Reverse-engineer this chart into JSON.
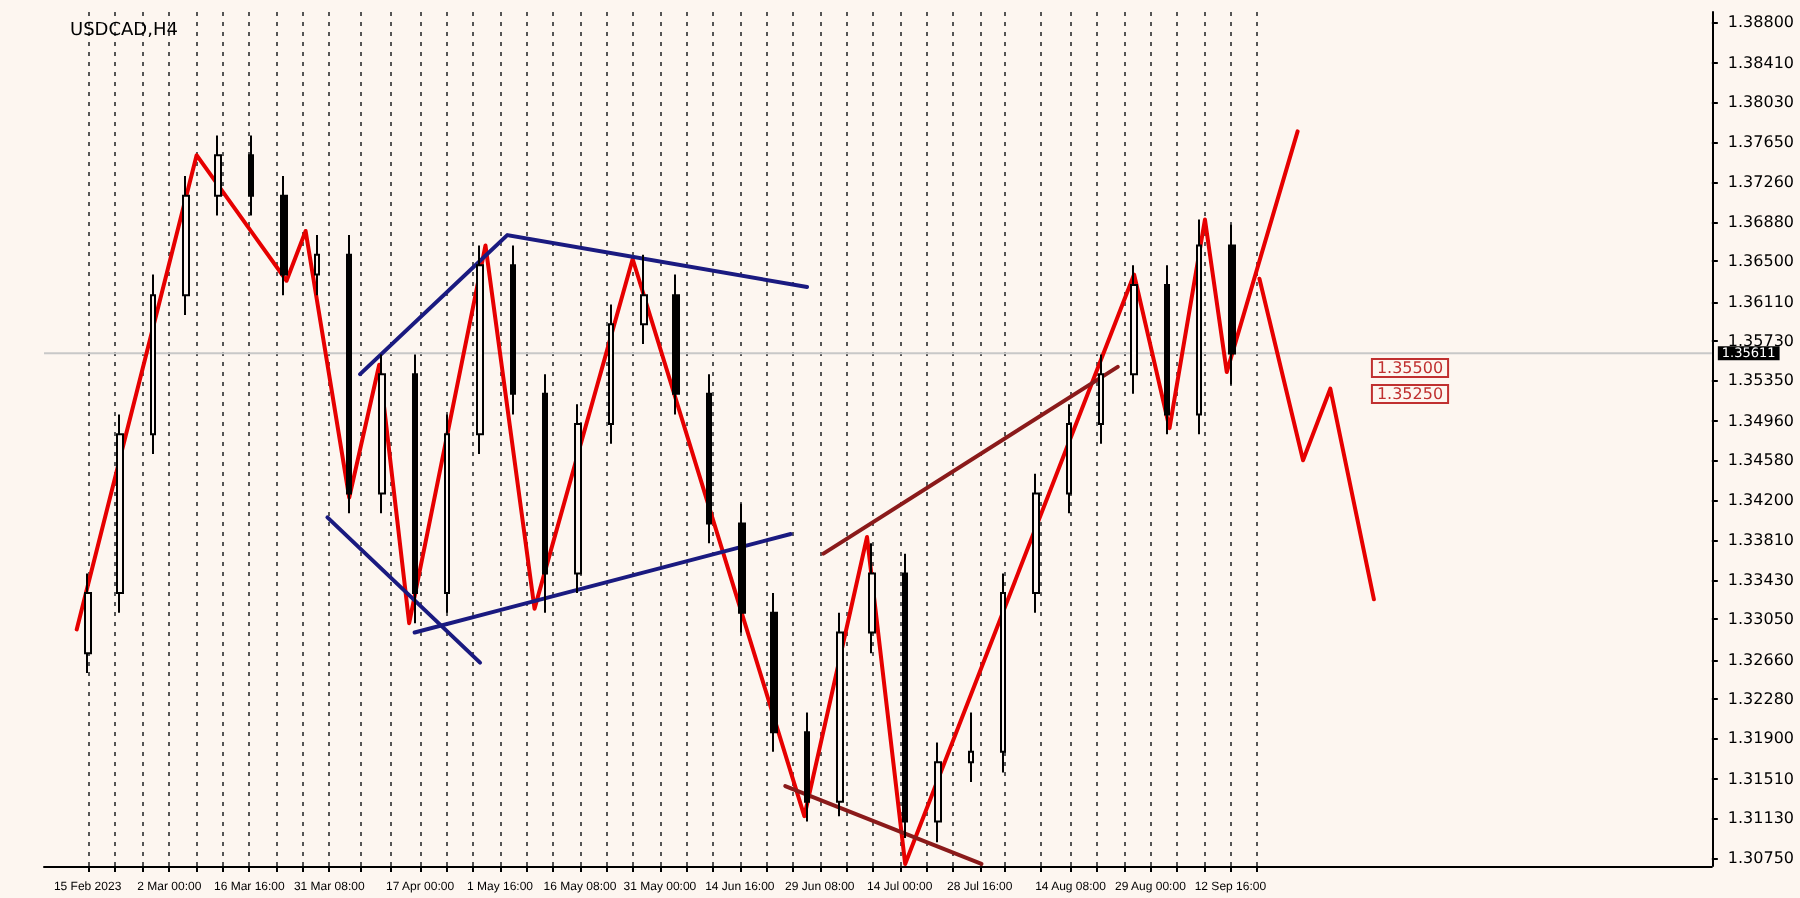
{
  "chart_data": {
    "type": "candlestick",
    "title": "USDCAD,H4",
    "color": "#000000",
    "x": [
      "2023-02-15",
      "2023-02-21",
      "2023-02-27",
      "2023-03-05",
      "2023-03-11",
      "2023-03-17",
      "2023-03-23",
      "2023-03-29",
      "2023-04-04",
      "2023-04-10",
      "2023-04-16",
      "2023-04-22",
      "2023-04-28",
      "2023-05-04",
      "2023-05-10",
      "2023-05-16",
      "2023-05-22",
      "2023-05-28",
      "2023-06-03",
      "2023-06-09",
      "2023-06-15",
      "2023-06-21",
      "2023-06-27",
      "2023-07-03",
      "2023-07-09",
      "2023-07-15",
      "2023-07-21",
      "2023-07-27",
      "2023-08-02",
      "2023-08-08",
      "2023-08-14",
      "2023-08-20",
      "2023-08-26",
      "2023-09-01",
      "2023-09-07",
      "2023-09-13"
    ],
    "ohlc": [
      [
        1.3272,
        1.3349,
        1.3253,
        1.333
      ],
      [
        1.333,
        1.3502,
        1.3311,
        1.3483
      ],
      [
        1.3483,
        1.3637,
        1.3464,
        1.3617
      ],
      [
        1.3617,
        1.3732,
        1.3598,
        1.3713
      ],
      [
        1.3713,
        1.3771,
        1.3694,
        1.3752
      ],
      [
        1.3752,
        1.3771,
        1.3694,
        1.3713
      ],
      [
        1.3713,
        1.3732,
        1.3617,
        1.3637
      ],
      [
        1.3637,
        1.3675,
        1.3617,
        1.3656
      ],
      [
        1.3656,
        1.3675,
        1.3407,
        1.3426
      ],
      [
        1.3426,
        1.356,
        1.3407,
        1.3541
      ],
      [
        1.3541,
        1.356,
        1.3301,
        1.333
      ],
      [
        1.333,
        1.3502,
        1.3311,
        1.3483
      ],
      [
        1.3483,
        1.3665,
        1.3464,
        1.3646
      ],
      [
        1.3646,
        1.3665,
        1.3502,
        1.3522
      ],
      [
        1.3522,
        1.3541,
        1.3311,
        1.3349
      ],
      [
        1.3349,
        1.3512,
        1.333,
        1.3493
      ],
      [
        1.3493,
        1.3608,
        1.3474,
        1.3589
      ],
      [
        1.3589,
        1.3656,
        1.357,
        1.3617
      ],
      [
        1.3617,
        1.3637,
        1.3502,
        1.3522
      ],
      [
        1.3522,
        1.3541,
        1.3378,
        1.3397
      ],
      [
        1.3397,
        1.3416,
        1.3292,
        1.3311
      ],
      [
        1.3311,
        1.333,
        1.3177,
        1.3196
      ],
      [
        1.3196,
        1.3215,
        1.311,
        1.3129
      ],
      [
        1.3129,
        1.3311,
        1.3115,
        1.3292
      ],
      [
        1.3292,
        1.3378,
        1.3272,
        1.3349
      ],
      [
        1.3349,
        1.3368,
        1.3094,
        1.311
      ],
      [
        1.311,
        1.3186,
        1.309,
        1.3167
      ],
      [
        1.3167,
        1.3215,
        1.3148,
        1.3177
      ],
      [
        1.3177,
        1.3349,
        1.3157,
        1.333
      ],
      [
        1.333,
        1.3445,
        1.3311,
        1.3426
      ],
      [
        1.3426,
        1.3512,
        1.3407,
        1.3493
      ],
      [
        1.3493,
        1.356,
        1.3474,
        1.3541
      ],
      [
        1.3541,
        1.3646,
        1.3522,
        1.3627
      ],
      [
        1.3627,
        1.3646,
        1.3483,
        1.3502
      ],
      [
        1.3502,
        1.369,
        1.3483,
        1.3665
      ],
      [
        1.3665,
        1.3685,
        1.3531,
        1.3561
      ]
    ],
    "series": [
      {
        "type": "line",
        "color": "#e60000",
        "x": [
          "2023-02-13",
          "2023-03-07",
          "2023-03-23T12:00",
          "2023-03-27",
          "2023-04-04",
          "2023-04-09T12:00",
          "2023-04-15",
          "2023-04-29",
          "2023-05-08",
          "2023-05-26",
          "2023-06-26T12:00",
          "2023-07-08",
          "2023-07-15",
          "2023-08-26",
          "2023-09-01T12:00",
          "2023-09-08",
          "2023-09-12",
          "2023-09-25"
        ],
        "values": [
          1.3295,
          1.3752,
          1.3631,
          1.3679,
          1.3422,
          1.355,
          1.3301,
          1.3665,
          1.3315,
          1.3652,
          1.3115,
          1.3384,
          1.3069,
          1.3637,
          1.3489,
          1.369,
          1.3543,
          1.3775
        ]
      },
      {
        "type": "line",
        "color": "#e60000",
        "x": [
          "2023-09-18",
          "2023-09-26",
          "2023-10-01",
          "2023-10-09"
        ],
        "values": [
          1.3633,
          1.3458,
          1.3527,
          1.3324
        ]
      },
      {
        "type": "line",
        "color": "#1a1a80",
        "x": [
          "2023-04-06",
          "2023-05-03",
          "2023-06-27"
        ],
        "values": [
          1.3541,
          1.3675,
          1.3625
        ]
      },
      {
        "type": "line",
        "color": "#1a1a80",
        "x": [
          "2023-03-31",
          "2023-04-28"
        ],
        "values": [
          1.3403,
          1.3263
        ]
      },
      {
        "type": "line",
        "color": "#1a1a80",
        "x": [
          "2023-04-16",
          "2023-06-24"
        ],
        "values": [
          1.3292,
          1.3387
        ]
      },
      {
        "type": "line",
        "color": "#8b1a1a",
        "x": [
          "2023-06-30",
          "2023-08-23"
        ],
        "values": [
          1.3368,
          1.3548
        ]
      },
      {
        "type": "line",
        "color": "#8b1a1a",
        "x": [
          "2023-06-23",
          "2023-07-29"
        ],
        "values": [
          1.3144,
          1.3069
        ]
      }
    ],
    "xlim": [
      "2023-02-07",
      "2023-12-10"
    ],
    "xticks": [
      {
        "value": "2023-02-15T00:00",
        "label": "15 Feb 2023"
      },
      {
        "value": "2023-02-20T00:00",
        "label": null
      },
      {
        "value": "2023-02-25T00:00",
        "label": null
      },
      {
        "value": "2023-03-02T00:00",
        "label": "2 Mar 00:00"
      },
      {
        "value": "2023-03-06T21:20",
        "label": null
      },
      {
        "value": "2023-03-11T18:40",
        "label": null
      },
      {
        "value": "2023-03-16T16:00",
        "label": "16 Mar 16:00"
      },
      {
        "value": "2023-03-21T13:20",
        "label": null
      },
      {
        "value": "2023-03-26T10:40",
        "label": null
      },
      {
        "value": "2023-03-31T08:00",
        "label": "31 Mar 08:00"
      },
      {
        "value": "2023-04-05T21:20",
        "label": null
      },
      {
        "value": "2023-04-11T10:40",
        "label": null
      },
      {
        "value": "2023-04-17T00:00",
        "label": "17 Apr 00:00"
      },
      {
        "value": "2023-04-21T21:20",
        "label": null
      },
      {
        "value": "2023-04-26T18:40",
        "label": null
      },
      {
        "value": "2023-05-01T16:00",
        "label": "1 May 16:00"
      },
      {
        "value": "2023-05-06T13:20",
        "label": null
      },
      {
        "value": "2023-05-11T10:40",
        "label": null
      },
      {
        "value": "2023-05-16T08:00",
        "label": "16 May 08:00"
      },
      {
        "value": "2023-05-21T05:20",
        "label": null
      },
      {
        "value": "2023-05-26T02:40",
        "label": null
      },
      {
        "value": "2023-05-31T00:00",
        "label": "31 May 00:00"
      },
      {
        "value": "2023-06-04T21:20",
        "label": null
      },
      {
        "value": "2023-06-09T18:40",
        "label": null
      },
      {
        "value": "2023-06-14T16:00",
        "label": "14 Jun 16:00"
      },
      {
        "value": "2023-06-19T13:20",
        "label": null
      },
      {
        "value": "2023-06-24T10:40",
        "label": null
      },
      {
        "value": "2023-06-29T08:00",
        "label": "29 Jun 08:00"
      },
      {
        "value": "2023-07-04T05:20",
        "label": null
      },
      {
        "value": "2023-07-09T02:40",
        "label": null
      },
      {
        "value": "2023-07-14T00:00",
        "label": "14 Jul 00:00"
      },
      {
        "value": "2023-07-18T21:20",
        "label": null
      },
      {
        "value": "2023-07-23T18:40",
        "label": null
      },
      {
        "value": "2023-07-28T16:00",
        "label": "28 Jul 16:00"
      },
      {
        "value": "2023-08-02T05:20",
        "label": null
      },
      {
        "value": "2023-08-08T18:40",
        "label": null
      },
      {
        "value": "2023-08-14T08:00",
        "label": "14 Aug 08:00"
      },
      {
        "value": "2023-08-19T05:20",
        "label": null
      },
      {
        "value": "2023-08-24T02:40",
        "label": null
      },
      {
        "value": "2023-08-29T00:00",
        "label": "29 Aug 00:00"
      },
      {
        "value": "2023-09-02T21:20",
        "label": null
      },
      {
        "value": "2023-09-07T18:40",
        "label": null
      },
      {
        "value": "2023-09-12T16:00",
        "label": "12 Sep 16:00"
      },
      {
        "value": "2023-09-17T13:20",
        "label": null
      }
    ],
    "ylim": [
      1.3067,
      1.389
    ],
    "yticks": [
      {
        "value": 1.388,
        "label": "1.38800"
      },
      {
        "value": 1.3841,
        "label": "1.38410"
      },
      {
        "value": 1.3803,
        "label": "1.38030"
      },
      {
        "value": 1.3765,
        "label": "1.37650"
      },
      {
        "value": 1.3726,
        "label": "1.37260"
      },
      {
        "value": 1.3688,
        "label": "1.36880"
      },
      {
        "value": 1.365,
        "label": "1.36500"
      },
      {
        "value": 1.3611,
        "label": "1.36110"
      },
      {
        "value": 1.3573,
        "label": "1.35730"
      },
      {
        "value": 1.3535,
        "label": "1.35350"
      },
      {
        "value": 1.3496,
        "label": "1.34960"
      },
      {
        "value": 1.3458,
        "label": "1.34580"
      },
      {
        "value": 1.342,
        "label": "1.34200"
      },
      {
        "value": 1.3381,
        "label": "1.33810"
      },
      {
        "value": 1.3343,
        "label": "1.33430"
      },
      {
        "value": 1.3305,
        "label": "1.33050"
      },
      {
        "value": 1.3266,
        "label": "1.32660"
      },
      {
        "value": 1.3228,
        "label": "1.32280"
      },
      {
        "value": 1.319,
        "label": "1.31900"
      },
      {
        "value": 1.3151,
        "label": "1.31510"
      },
      {
        "value": 1.3113,
        "label": "1.31130"
      },
      {
        "value": 1.3075,
        "label": "1.30750"
      }
    ],
    "ref_lines": [
      {
        "axis": "y",
        "value": 1.35611,
        "label": "1.35611",
        "color": "#c8c8c8"
      }
    ],
    "annotations": [
      "1.35500",
      "1.35250"
    ],
    "grid": "x",
    "marker": "none",
    "line_style": "solid"
  }
}
